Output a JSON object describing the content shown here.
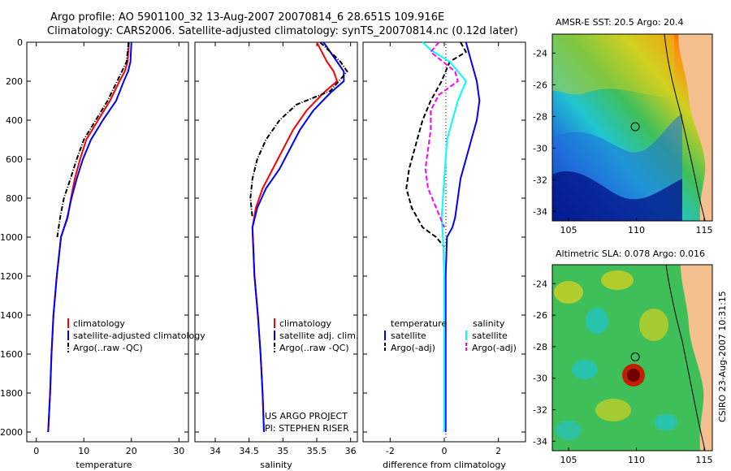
{
  "titles": {
    "line1": "Argo profile: AO 5901100_32 13-Aug-2007 20070814_6 28.651S 109.916E",
    "line2": "Climatology: CARS2006. Satellite-adjusted climatology: synTS_20070814.nc (0.12d later)"
  },
  "side_label": "CSIRO 23-Aug-2007 10:31:15",
  "credits": [
    "US ARGO PROJECT",
    "PI: STEPHEN RISER"
  ],
  "colors": {
    "clim": "#ff0000",
    "sat": "#0000ff",
    "argo": "#000000",
    "sat_s": "#00ffff",
    "argo_s": "#ff00ff"
  },
  "chart_data": [
    {
      "type": "line",
      "panel": "temperature",
      "xlabel": "temperature",
      "xlim": [
        -2,
        32
      ],
      "xticks": [
        0,
        10,
        20,
        30
      ],
      "ylim": [
        0,
        2050
      ],
      "yticks": [
        0,
        200,
        400,
        600,
        800,
        1000,
        1200,
        1400,
        1600,
        1800,
        2000
      ],
      "yreversed": true,
      "legend": [
        "climatology",
        "satellite-adjusted climatology",
        "Argo(..raw -QC)"
      ],
      "series": [
        {
          "name": "climatology",
          "style": "solid",
          "color": "#ff0000",
          "x": [
            19.5,
            19.2,
            18.6,
            17.5,
            15.5,
            13.0,
            10.5,
            9.2,
            8.1,
            7.3,
            6.6,
            5.2,
            4.3,
            3.6,
            3.2,
            2.9,
            2.7,
            2.5
          ],
          "y": [
            0,
            100,
            150,
            200,
            300,
            400,
            500,
            600,
            700,
            800,
            900,
            1000,
            1200,
            1400,
            1600,
            1800,
            1900,
            2000
          ]
        },
        {
          "name": "satellite-adjusted climatology",
          "style": "solid",
          "color": "#0000ff",
          "x": [
            20.0,
            19.8,
            19.3,
            18.4,
            16.8,
            14.0,
            11.5,
            9.8,
            8.5,
            7.4,
            6.5,
            5.2,
            4.3,
            3.6,
            3.2,
            2.9,
            2.7,
            2.5
          ],
          "y": [
            0,
            100,
            150,
            200,
            300,
            400,
            500,
            600,
            700,
            800,
            900,
            1000,
            1200,
            1400,
            1600,
            1800,
            1900,
            2000
          ]
        },
        {
          "name": "Argo(..raw -QC)",
          "style": "dashdot",
          "color": "#000000",
          "x": [
            19.4,
            19.0,
            18.0,
            17.0,
            15.0,
            12.5,
            10.0,
            8.5,
            7.2,
            5.8,
            5.0,
            4.4
          ],
          "y": [
            0,
            100,
            150,
            200,
            300,
            400,
            500,
            600,
            700,
            800,
            900,
            1000
          ]
        }
      ]
    },
    {
      "type": "line",
      "panel": "salinity",
      "xlabel": "salinity",
      "xlim": [
        33.7,
        36.1
      ],
      "xticks": [
        34,
        34.5,
        35,
        35.5,
        36
      ],
      "ylim": [
        0,
        2050
      ],
      "yreversed": true,
      "legend": [
        "climatology",
        "satellite adj. clim.",
        "Argo(..raw -QC)"
      ],
      "series": [
        {
          "name": "climatology",
          "style": "solid",
          "color": "#ff0000",
          "x": [
            35.5,
            35.65,
            35.75,
            35.8,
            35.6,
            35.35,
            35.15,
            35.0,
            34.85,
            34.7,
            34.6,
            34.55,
            34.58,
            34.63,
            34.67,
            34.7,
            34.72
          ],
          "y": [
            0,
            100,
            150,
            200,
            260,
            350,
            450,
            550,
            650,
            750,
            850,
            950,
            1200,
            1400,
            1600,
            1800,
            2000
          ]
        },
        {
          "name": "satellite adj. clim.",
          "style": "solid",
          "color": "#0000ff",
          "x": [
            35.6,
            35.8,
            35.9,
            35.9,
            35.7,
            35.45,
            35.25,
            35.1,
            34.95,
            34.75,
            34.62,
            34.55,
            34.58,
            34.63,
            34.67,
            34.7,
            34.72
          ],
          "y": [
            0,
            100,
            150,
            200,
            260,
            350,
            450,
            550,
            650,
            750,
            850,
            950,
            1200,
            1400,
            1600,
            1800,
            2000
          ]
        },
        {
          "name": "Argo(..raw -QC)",
          "style": "dashdot",
          "color": "#000000",
          "x": [
            35.55,
            35.7,
            35.85,
            35.95,
            35.7,
            35.2,
            34.95,
            34.75,
            34.62,
            34.55,
            34.52,
            34.55
          ],
          "y": [
            0,
            50,
            100,
            150,
            250,
            320,
            400,
            500,
            600,
            700,
            800,
            900
          ]
        }
      ]
    },
    {
      "type": "line",
      "panel": "difference",
      "xlabel": "difference from climatology",
      "xlim": [
        -3,
        3
      ],
      "xticks": [
        -2,
        0,
        2
      ],
      "ylim": [
        0,
        2050
      ],
      "yreversed": true,
      "legend_groups": [
        {
          "heading": "temperature",
          "items": [
            "satellite",
            "Argo(-adj)"
          ]
        },
        {
          "heading": "salinity",
          "items": [
            "satellite",
            "Argo(-adj)"
          ]
        }
      ],
      "series": [
        {
          "name": "temperature satellite",
          "style": "solid",
          "color": "#0000ff",
          "x": [
            0.8,
            1.0,
            1.2,
            1.3,
            1.2,
            1.0,
            0.8,
            0.6,
            0.5,
            0.4,
            0.3,
            0.1,
            0.05,
            0.05,
            0.05,
            0.05
          ],
          "y": [
            0,
            100,
            200,
            300,
            400,
            500,
            600,
            700,
            800,
            900,
            950,
            1000,
            1200,
            1500,
            1800,
            2000
          ]
        },
        {
          "name": "temperature Argo(-adj)",
          "style": "dashed",
          "color": "#000000",
          "x": [
            0.6,
            0.8,
            0.2,
            -0.1,
            -0.5,
            -0.8,
            -1.1,
            -1.3,
            -1.4,
            -1.2,
            -0.8,
            -0.3,
            0.0
          ],
          "y": [
            0,
            50,
            100,
            200,
            300,
            400,
            550,
            650,
            750,
            850,
            950,
            1000,
            1050
          ]
        },
        {
          "name": "salinity satellite",
          "style": "solid",
          "color": "#00ffff",
          "x": [
            -0.8,
            -0.5,
            0.2,
            0.8,
            0.5,
            0.3,
            0.1,
            0.05,
            0.0,
            -0.05,
            -0.1,
            -0.05,
            0.0,
            0.0,
            0.0
          ],
          "y": [
            0,
            40,
            100,
            200,
            300,
            400,
            500,
            600,
            700,
            800,
            900,
            1000,
            1200,
            1600,
            2000
          ]
        },
        {
          "name": "salinity Argo(-adj)",
          "style": "dashed",
          "color": "#ff00ff",
          "x": [
            -0.2,
            -0.5,
            0.4,
            0.5,
            -0.2,
            -0.5,
            -0.5,
            -0.6,
            -0.7,
            -0.6,
            -0.3,
            0.0
          ],
          "y": [
            0,
            50,
            150,
            200,
            270,
            350,
            450,
            550,
            650,
            750,
            850,
            950
          ]
        }
      ]
    },
    {
      "type": "heatmap",
      "panel": "map-sst",
      "title": "AMSR-E SST: 20.5 Argo: 20.4",
      "xticks": [
        105,
        110,
        115
      ],
      "yticks": [
        -24,
        -26,
        -28,
        -30,
        -32,
        -34
      ],
      "xlim": [
        103.8,
        115.6
      ],
      "ylim": [
        -34.6,
        -22.8
      ],
      "marker": {
        "lon": 109.916,
        "lat": -28.651
      }
    },
    {
      "type": "heatmap",
      "panel": "map-sla",
      "title": "Altimetric SLA: 0.078 Argo: 0.016",
      "xticks": [
        105,
        110,
        115
      ],
      "yticks": [
        -24,
        -26,
        -28,
        -30,
        -32,
        -34
      ],
      "xlim": [
        103.8,
        115.6
      ],
      "ylim": [
        -34.6,
        -22.8
      ],
      "marker": {
        "lon": 109.916,
        "lat": -28.651
      }
    }
  ]
}
